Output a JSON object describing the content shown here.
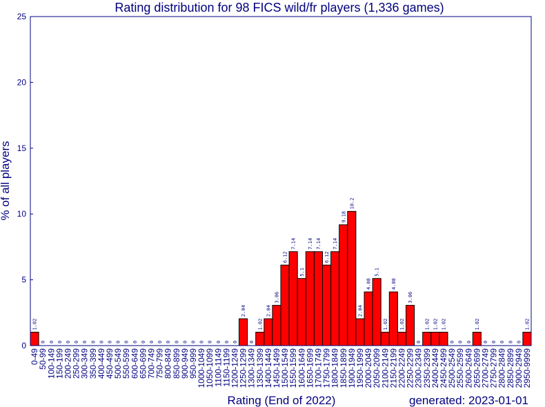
{
  "chart_data": {
    "type": "bar",
    "title": "Rating distribution for 98 FICS wild/fr players (1,336 games)",
    "x_label": "Rating (End of 2022)",
    "y_label": "% of all players",
    "note": "generated: 2023-01-01",
    "categories": [
      "0-49",
      "50-99",
      "100-149",
      "150-199",
      "200-249",
      "250-299",
      "300-349",
      "350-399",
      "400-449",
      "450-499",
      "500-549",
      "550-599",
      "600-649",
      "650-699",
      "700-749",
      "750-799",
      "800-849",
      "850-899",
      "900-949",
      "950-999",
      "1000-1049",
      "1050-1099",
      "1100-1149",
      "1150-1199",
      "1200-1249",
      "1250-1299",
      "1300-1349",
      "1350-1399",
      "1400-1449",
      "1450-1499",
      "1500-1549",
      "1550-1599",
      "1600-1649",
      "1650-1699",
      "1700-1749",
      "1750-1799",
      "1800-1849",
      "1850-1899",
      "1900-1949",
      "1950-1999",
      "2000-2049",
      "2050-2099",
      "2100-2149",
      "2150-2199",
      "2200-2249",
      "2250-2299",
      "2300-2349",
      "2350-2399",
      "2400-2449",
      "2450-2499",
      "2500-2549",
      "2550-2599",
      "2600-2649",
      "2650-2699",
      "2700-2749",
      "2750-2799",
      "2800-2849",
      "2850-2899",
      "2900-2949",
      "2950-9999"
    ],
    "values": [
      1.02,
      0,
      0,
      0,
      0,
      0,
      0,
      0,
      0,
      0,
      0,
      0,
      0,
      0,
      0,
      0,
      0,
      0,
      0,
      0,
      0,
      0,
      0,
      0,
      0,
      2.04,
      0,
      1.02,
      2.04,
      3.06,
      6.12,
      7.14,
      5.1,
      7.14,
      7.14,
      6.12,
      7.14,
      9.18,
      10.2,
      2.04,
      4.08,
      5.1,
      1.02,
      4.08,
      1.02,
      3.06,
      0,
      1.02,
      1.02,
      1.02,
      0,
      0,
      0,
      1.02,
      0,
      0,
      0,
      0,
      0,
      1.02
    ],
    "color": "#ff0000",
    "ylim": [
      0,
      25
    ],
    "yticks": [
      0,
      5,
      10,
      15,
      20,
      25
    ]
  }
}
